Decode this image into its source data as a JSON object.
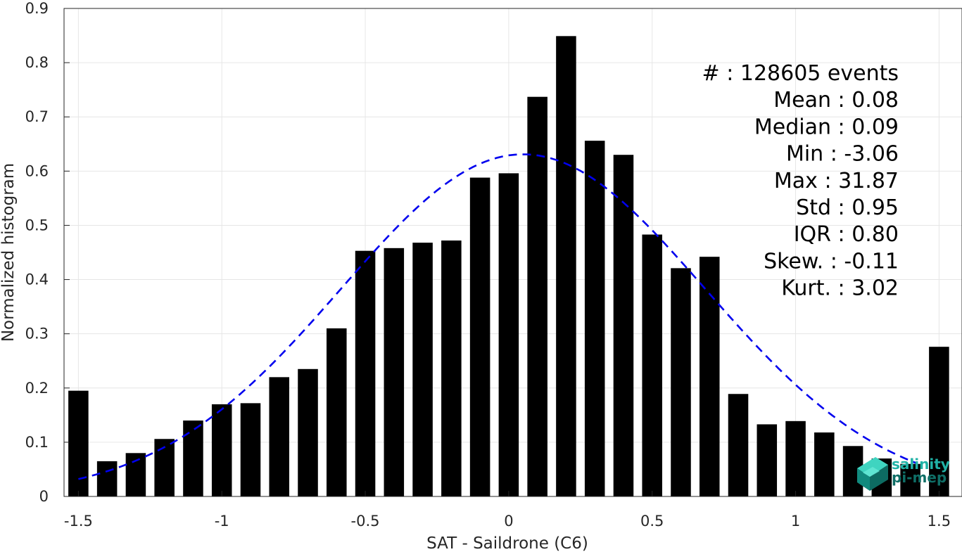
{
  "chart_data": {
    "type": "bar",
    "xlabel": "SAT - Saildrone (C6)",
    "ylabel": "Normalized histogram",
    "xlim": [
      -1.55,
      1.58
    ],
    "ylim": [
      0,
      0.9
    ],
    "xticks": [
      "-1.5",
      "-1",
      "-0.5",
      "0",
      "0.5",
      "1",
      "1.5"
    ],
    "yticks": [
      "0",
      "0.1",
      "0.2",
      "0.3",
      "0.4",
      "0.5",
      "0.6",
      "0.7",
      "0.8",
      "0.9"
    ],
    "grid": true,
    "bar_color": "#000000",
    "bar_width": 0.07,
    "x": [
      -1.5,
      -1.4,
      -1.3,
      -1.2,
      -1.1,
      -1.0,
      -0.9,
      -0.8,
      -0.7,
      -0.6,
      -0.5,
      -0.4,
      -0.3,
      -0.2,
      -0.1,
      0.0,
      0.1,
      0.2,
      0.3,
      0.4,
      0.5,
      0.6,
      0.7,
      0.8,
      0.9,
      1.0,
      1.1,
      1.2,
      1.3,
      1.4,
      1.5
    ],
    "values": [
      0.195,
      0.065,
      0.08,
      0.106,
      0.14,
      0.17,
      0.172,
      0.22,
      0.235,
      0.31,
      0.453,
      0.458,
      0.468,
      0.472,
      0.588,
      0.596,
      0.737,
      0.849,
      0.656,
      0.63,
      0.483,
      0.421,
      0.442,
      0.189,
      0.133,
      0.139,
      0.118,
      0.093,
      0.07,
      0.06,
      0.276
    ],
    "fit_curve": {
      "style": "dashed",
      "color": "#0000ee",
      "mean": 0.05,
      "std": 0.635,
      "peak": 0.631,
      "x_range": [
        -1.5,
        1.42
      ]
    },
    "stats": [
      "#  : 128605 events",
      "Mean : 0.08",
      "Median : 0.09",
      "Min : -3.06",
      "Max : 31.87",
      "Std : 0.95",
      "IQR : 0.80",
      "Skew. : -0.11",
      "Kurt. : 3.02"
    ]
  },
  "logo": {
    "line1": "salinity",
    "line2": "pi-mep"
  }
}
